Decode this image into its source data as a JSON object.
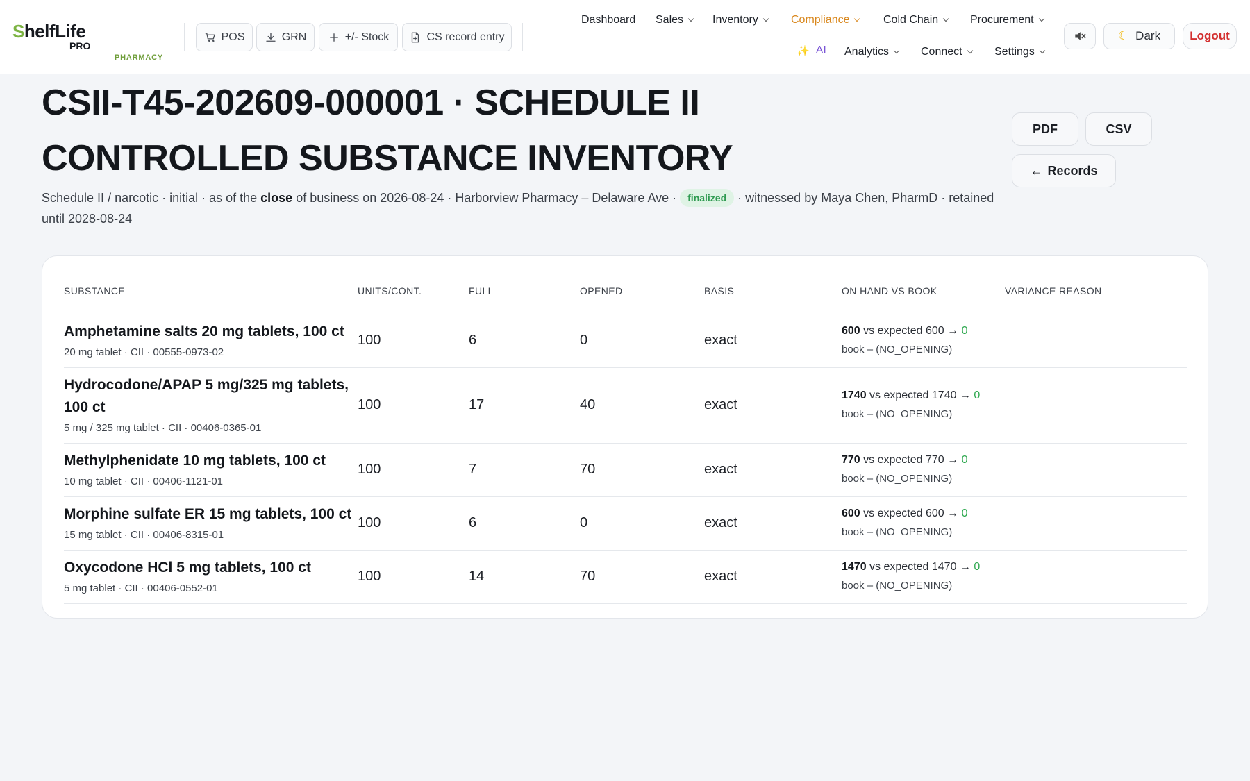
{
  "brand": {
    "name_first": "S",
    "name_rest": "helfLife",
    "sub": "PRO",
    "tag": "PHARMACY"
  },
  "quick_actions": [
    {
      "label": "POS",
      "icon": "cart-icon"
    },
    {
      "label": "GRN",
      "icon": "download-icon"
    },
    {
      "label": "+/- Stock",
      "icon": "plus-icon"
    },
    {
      "label": "CS record entry",
      "icon": "file-plus-icon"
    }
  ],
  "nav": {
    "dashboard": "Dashboard",
    "sales": "Sales",
    "inventory": "Inventory",
    "compliance": "Compliance",
    "cold_chain": "Cold Chain",
    "procurement": "Procurement",
    "ai": "AI",
    "analytics": "Analytics",
    "connect": "Connect",
    "settings": "Settings"
  },
  "header_buttons": {
    "theme": "Dark",
    "logout": "Logout",
    "theme_icon": "moon-icon",
    "mute_icon": "speaker-mute-icon"
  },
  "page": {
    "title": "CSII-T45-202609-000001 · SCHEDULE II CONTROLLED SUBSTANCE INVENTORY",
    "actions": {
      "pdf": "PDF",
      "csv": "CSV",
      "records": "Records"
    },
    "meta": {
      "part1": "Schedule II / narcotic · initial · as of the ",
      "bold": "close",
      "part2": " of business on 2026-08-24 · Harborview Pharmacy – Delaware Ave · ",
      "status": "finalized",
      "part3": " · witnessed by Maya Chen, PharmD · retained until 2028-08-24"
    }
  },
  "table": {
    "headers": [
      "SUBSTANCE",
      "UNITS/CONT.",
      "FULL",
      "OPENED",
      "BASIS",
      "ON HAND VS BOOK",
      "VARIANCE REASON"
    ],
    "rows": [
      {
        "name": "Amphetamine salts 20 mg tablets, 100 ct",
        "detail": "20 mg tablet · CII · 00555-0973-02",
        "units": "100",
        "full": "6",
        "opened": "0",
        "basis": "exact",
        "on_hand": "600",
        "vs": " vs expected 600 → ",
        "variance": "0",
        "book": "book – (NO_OPENING)",
        "reason": ""
      },
      {
        "name": "Hydrocodone/APAP 5 mg/325 mg tablets, 100 ct",
        "detail": "5 mg / 325 mg tablet · CII · 00406-0365-01",
        "units": "100",
        "full": "17",
        "opened": "40",
        "basis": "exact",
        "on_hand": "1740",
        "vs": " vs expected 1740 → ",
        "variance": "0",
        "book": "book – (NO_OPENING)",
        "reason": ""
      },
      {
        "name": "Methylphenidate 10 mg tablets, 100 ct",
        "detail": "10 mg tablet · CII · 00406-1121-01",
        "units": "100",
        "full": "7",
        "opened": "70",
        "basis": "exact",
        "on_hand": "770",
        "vs": " vs expected 770 → ",
        "variance": "0",
        "book": "book – (NO_OPENING)",
        "reason": ""
      },
      {
        "name": "Morphine sulfate ER 15 mg tablets, 100 ct",
        "detail": "15 mg tablet · CII · 00406-8315-01",
        "units": "100",
        "full": "6",
        "opened": "0",
        "basis": "exact",
        "on_hand": "600",
        "vs": " vs expected 600 → ",
        "variance": "0",
        "book": "book – (NO_OPENING)",
        "reason": ""
      },
      {
        "name": "Oxycodone HCl 5 mg tablets, 100 ct",
        "detail": "5 mg tablet · CII · 00406-0552-01",
        "units": "100",
        "full": "14",
        "opened": "70",
        "basis": "exact",
        "on_hand": "1470",
        "vs": " vs expected 1470 → ",
        "variance": "0",
        "book": "book – (NO_OPENING)",
        "reason": ""
      }
    ]
  },
  "colors": {
    "accent_nav": "#d9871c",
    "brand_green": "#7cb342",
    "ok_green": "#2ea84f",
    "danger": "#d32f2f",
    "ai_purple": "#7a55d6"
  }
}
